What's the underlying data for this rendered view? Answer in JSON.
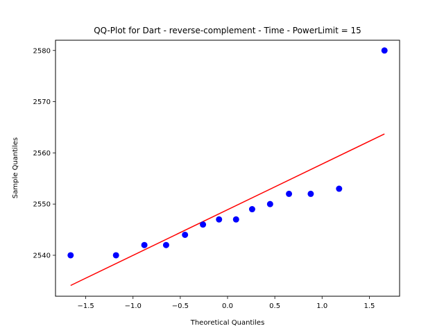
{
  "chart_data": {
    "type": "scatter",
    "title": "QQ-Plot for Dart - reverse-complement - Time - PowerLimit = 15",
    "xlabel": "Theoretical Quantiles",
    "ylabel": "Sample Quantiles",
    "xlim": [
      -1.82,
      1.82
    ],
    "ylim": [
      2532.0,
      2582.0
    ],
    "xticks": [
      -1.5,
      -1.0,
      -0.5,
      0.0,
      0.5,
      1.0,
      1.5
    ],
    "xtick_labels": [
      "−1.5",
      "−1.0",
      "−0.5",
      "0.0",
      "0.5",
      "1.0",
      "1.5"
    ],
    "yticks": [
      2540,
      2550,
      2560,
      2570,
      2580
    ],
    "ytick_labels": [
      "2540",
      "2550",
      "2560",
      "2570",
      "2580"
    ],
    "grid": false,
    "series": [
      {
        "kind": "points",
        "color": "#0000ff",
        "x": [
          -1.66,
          -1.18,
          -0.88,
          -0.65,
          -0.45,
          -0.26,
          -0.09,
          0.09,
          0.26,
          0.45,
          0.65,
          0.88,
          1.18,
          1.66
        ],
        "y": [
          2540,
          2540,
          2542,
          2542,
          2544,
          2546,
          2547,
          2547,
          2549,
          2550,
          2552,
          2552,
          2553,
          2580
        ]
      },
      {
        "kind": "line",
        "color": "#ff0000",
        "x": [
          -1.66,
          1.66
        ],
        "y": [
          2534.1,
          2563.7
        ]
      }
    ]
  }
}
